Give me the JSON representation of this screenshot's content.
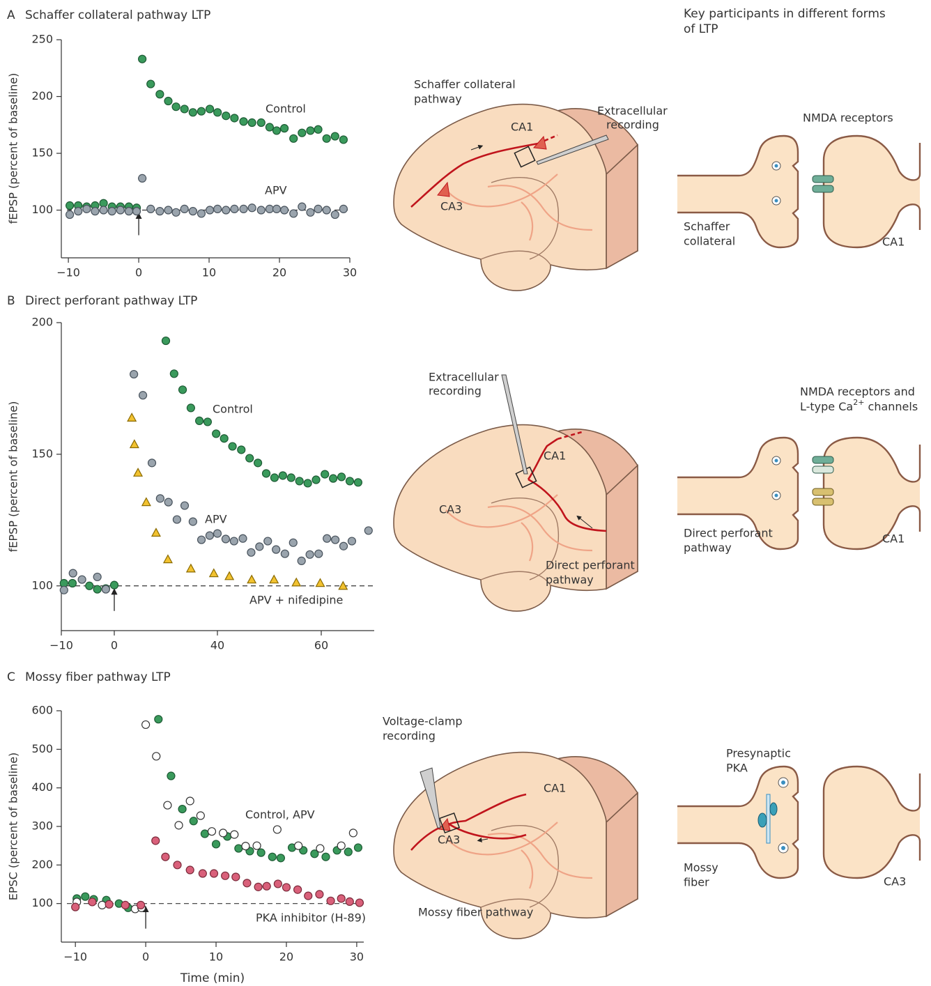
{
  "chart_data": [
    {
      "type": "scatter",
      "panel": "A",
      "title": "Schaffer collateral pathway LTP",
      "ylabel": "fEPSP (percent of baseline)",
      "xlim": [
        -11,
        30
      ],
      "xticks": [
        {
          "value": -10,
          "label": "−10"
        },
        0,
        10,
        20,
        30
      ],
      "ylim": [
        58,
        250
      ],
      "yticks": [
        100,
        150,
        200,
        250
      ],
      "baseline": 100,
      "stimulus": 0,
      "series": [
        {
          "name": "Control",
          "color": "#3a9a5c",
          "stroke": "#1d5a34",
          "marker": "circle",
          "x": [
            -9.8,
            -8.6,
            -7.4,
            -6.2,
            -5.0,
            -3.8,
            -2.6,
            -1.4,
            -0.3,
            0.5,
            1.7,
            3.0,
            4.2,
            5.3,
            6.5,
            7.7,
            8.9,
            10.1,
            11.2,
            12.4,
            13.6,
            14.9,
            16.1,
            17.4,
            18.6,
            19.6,
            20.7,
            22.0,
            23.2,
            24.4,
            25.5,
            26.7,
            27.9,
            29.1
          ],
          "values": [
            104,
            104,
            103,
            104,
            106,
            103,
            103,
            103,
            102,
            233,
            211,
            202,
            196,
            191,
            189,
            186,
            187,
            189,
            186,
            183,
            181,
            178,
            177,
            177,
            173,
            170,
            172,
            163,
            168,
            170,
            171,
            163,
            165,
            162
          ]
        },
        {
          "name": "APV",
          "color": "#9aa4ad",
          "stroke": "#48525c",
          "marker": "circle",
          "x": [
            -9.8,
            -8.6,
            -7.4,
            -6.2,
            -5.0,
            -3.8,
            -2.6,
            -1.4,
            -0.3,
            0.5,
            1.7,
            3.0,
            4.2,
            5.3,
            6.5,
            7.7,
            8.9,
            10.1,
            11.2,
            12.4,
            13.6,
            14.9,
            16.1,
            17.4,
            18.6,
            19.6,
            20.7,
            22.0,
            23.2,
            24.4,
            25.5,
            26.7,
            27.9,
            29.1
          ],
          "values": [
            96,
            99,
            101,
            99,
            100,
            99,
            100,
            99,
            99,
            128,
            101,
            99,
            100,
            98,
            101,
            99,
            97,
            100,
            101,
            100,
            101,
            101,
            102,
            100,
            101,
            101,
            100,
            97,
            103,
            98,
            101,
            100,
            96,
            101
          ]
        }
      ]
    },
    {
      "type": "scatter",
      "panel": "B",
      "title": "Direct perforant pathway LTP",
      "ylabel": "fEPSP (percent of baseline)",
      "xlim": [
        -10,
        70
      ],
      "xticks": [
        {
          "value": -10,
          "label": "−10"
        },
        0,
        40,
        60
      ],
      "ylim": [
        83,
        200
      ],
      "yticks": [
        100,
        150,
        200
      ],
      "baseline": 100,
      "stimulus": 0,
      "series": [
        {
          "name": "Control",
          "color": "#3a9a5c",
          "stroke": "#1d5a34",
          "marker": "circle",
          "x": [
            -9.5,
            -7.9,
            -4.7,
            -3.2,
            -1.6,
            0,
            20,
            23.2,
            26.5,
            29.7,
            33,
            36.2,
            39.5,
            41.3,
            42.9,
            44.6,
            46.2,
            47.8,
            49.4,
            51,
            52.6,
            54.2,
            55.8,
            57.4,
            59,
            60.7,
            62.3,
            63.9,
            65.5,
            67.1
          ],
          "values": [
            101,
            101,
            100,
            98.7,
            99,
            100.3,
            193.1,
            180.6,
            174.5,
            167.6,
            162.7,
            162.3,
            157.8,
            156,
            153,
            151.7,
            148.5,
            146.7,
            142.7,
            141.1,
            141.9,
            141.1,
            139.8,
            139,
            140.3,
            142.4,
            140.8,
            141.4,
            139.8,
            139.3
          ]
        },
        {
          "name": "APV",
          "color": "#9aa4ad",
          "stroke": "#48525c",
          "marker": "circle",
          "x": [
            -9.5,
            -7.8,
            -6.1,
            -3.2,
            -1.6,
            7.6,
            11.1,
            14.6,
            17.8,
            21,
            24.3,
            27.3,
            30.5,
            33.8,
            37,
            40,
            41.6,
            43.2,
            44.9,
            46.5,
            48.1,
            49.7,
            51.3,
            53,
            54.6,
            56.2,
            57.8,
            59.5,
            61.1,
            62.7,
            64.3,
            65.9,
            69.1
          ],
          "values": [
            98.4,
            104.8,
            102.4,
            103.4,
            98.7,
            180.4,
            172.4,
            146.7,
            133.2,
            131.8,
            125.2,
            130.5,
            124.4,
            117.5,
            119.1,
            119.9,
            117.8,
            117,
            118,
            112.7,
            114.9,
            117,
            113.8,
            112.2,
            116.4,
            109.5,
            111.9,
            112.2,
            118,
            117.5,
            115.1,
            117,
            121
          ]
        },
        {
          "name": "APV + nifedipine",
          "color": "#f2c230",
          "stroke": "#8a6a00",
          "marker": "triangle",
          "x": [
            6.8,
            7.8,
            9.2,
            12.4,
            16.2,
            20.8,
            29.7,
            38.6,
            42.3,
            46.6,
            50.9,
            55.2,
            59.8,
            64.2
          ],
          "values": [
            163.9,
            153.8,
            143,
            131.8,
            120.2,
            110.1,
            106.6,
            104.8,
            103.7,
            102.4,
            102.4,
            101.3,
            101.1,
            100
          ]
        }
      ]
    },
    {
      "type": "scatter",
      "panel": "C",
      "title": "Mossy fiber pathway LTP",
      "ylabel": "EPSC (percent of baseline)",
      "xlabel": "Time (min)",
      "xlim": [
        -12,
        31
      ],
      "xticks": [
        {
          "value": -10,
          "label": "−10"
        },
        0,
        10,
        20,
        30
      ],
      "ylim": [
        0,
        600
      ],
      "yticks": [
        100,
        200,
        300,
        400,
        500,
        600
      ],
      "baseline": 100,
      "stimulus": 0,
      "series": [
        {
          "name": "Control, APV",
          "color": "#3a9a5c",
          "stroke": "#1d5a34",
          "marker": "circle",
          "x": [
            -9.8,
            -8.6,
            -7.4,
            -5.6,
            -3.8,
            -2.5,
            1.8,
            3.6,
            5.2,
            6.8,
            8.4,
            10,
            11.6,
            13.2,
            14.8,
            16.4,
            18,
            19.2,
            20.8,
            22.4,
            24,
            25.6,
            27.2,
            28.8,
            30.2
          ],
          "values": [
            113,
            118,
            111,
            109,
            100,
            89,
            578,
            431,
            345,
            314,
            281,
            254,
            274,
            243,
            236,
            232,
            221,
            218,
            245,
            238,
            229,
            221,
            238,
            234,
            245
          ]
        },
        {
          "color": "#ffffff",
          "stroke": "#333333",
          "marker": "circle",
          "x": [
            -9.8,
            -6.2,
            -1.5,
            -0.6,
            0,
            1.5,
            3.1,
            4.7,
            6.3,
            7.8,
            9.4,
            11,
            12.6,
            14.2,
            15.8,
            18.7,
            21.7,
            24.8,
            27.8,
            29.5
          ],
          "values": [
            104,
            96,
            86,
            89,
            564,
            482,
            355,
            303,
            366,
            328,
            287,
            283,
            279,
            249,
            250,
            292,
            250,
            243,
            250,
            283
          ]
        },
        {
          "name": "PKA inhibitor (H-89)",
          "color": "#d9607a",
          "stroke": "#7a2a3a",
          "marker": "circle",
          "x": [
            -10,
            -7.6,
            -5.2,
            -2.9,
            -0.7,
            1.4,
            2.8,
            4.5,
            6.3,
            8.1,
            9.7,
            11.3,
            12.8,
            14.4,
            16,
            17.2,
            18.8,
            20,
            21.6,
            23.1,
            24.7,
            26.3,
            27.8,
            29,
            30.4
          ],
          "values": [
            91,
            104,
            98,
            96,
            96,
            263,
            221,
            200,
            187,
            178,
            178,
            172,
            169,
            153,
            143,
            145,
            151,
            142,
            136,
            120,
            124,
            107,
            113,
            105,
            102
          ]
        }
      ]
    }
  ],
  "diagrams": [
    {
      "pathway": [
        "Schaffer collateral",
        "pathway"
      ],
      "electrode": [
        "Extracellular",
        "recording"
      ],
      "ca1": "CA1",
      "ca3": "CA3"
    },
    {
      "pathway": [
        "Direct perforant",
        "pathway"
      ],
      "electrode": [
        "Extracellular",
        "recording"
      ],
      "ca1": "CA1",
      "ca3": "CA3"
    },
    {
      "pathway": [
        "Mossy fiber pathway"
      ],
      "electrode": [
        "Voltage-clamp",
        "recording"
      ],
      "ca1": "CA1",
      "ca3": "CA3"
    }
  ],
  "synapses": {
    "heading": [
      "Key participants in different forms",
      "of LTP"
    ],
    "panels": [
      {
        "receptor": [
          "NMDA receptors"
        ],
        "pre": [
          "Schaffer",
          "collateral"
        ],
        "post": "CA1"
      },
      {
        "receptor": [
          "NMDA receptors and",
          [
            "L-type Ca",
            "2+",
            " channels"
          ]
        ],
        "pre": [
          "Direct perforant",
          "pathway"
        ],
        "post": "CA1"
      },
      {
        "receptor": [
          "Presynaptic",
          "PKA"
        ],
        "pre": [
          "Mossy",
          "fiber"
        ],
        "post": "CA3"
      }
    ]
  }
}
